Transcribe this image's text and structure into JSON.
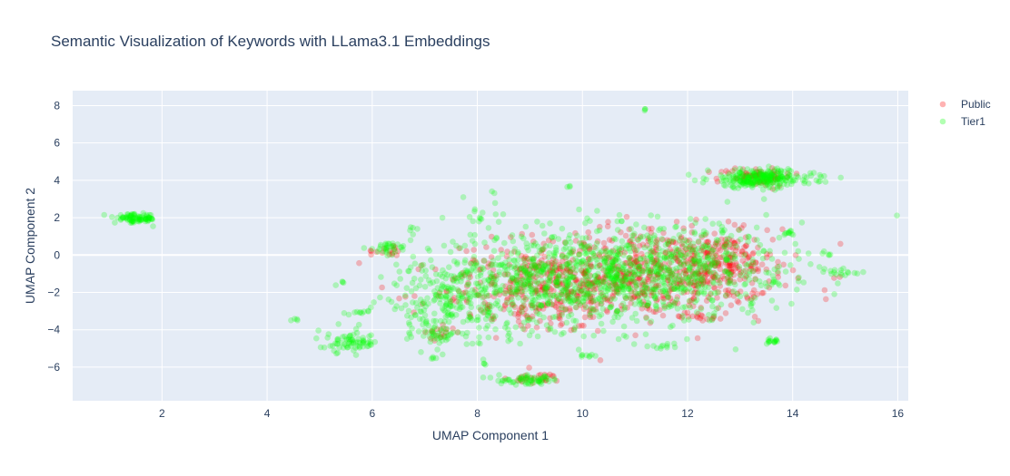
{
  "chart_data": {
    "type": "scatter",
    "title": "Semantic Visualization of Keywords with LLama3.1 Embeddings",
    "xlabel": "UMAP Component 1",
    "ylabel": "UMAP Component 2",
    "xlim": [
      0.3,
      16.2
    ],
    "ylim": [
      -7.8,
      8.8
    ],
    "xticks": [
      2,
      4,
      6,
      8,
      10,
      12,
      14,
      16
    ],
    "yticks": [
      -6,
      -4,
      -2,
      0,
      2,
      4,
      6,
      8
    ],
    "grid": true,
    "plot_background": "#e5ecf6",
    "legend_position": "top-right",
    "series": [
      {
        "name": "Public",
        "color": "#ff0000",
        "opacity": 0.25,
        "clusters": [
          {
            "cx": 11.0,
            "cy": -1.0,
            "sx": 1.3,
            "sy": 1.2,
            "n": 650
          },
          {
            "cx": 12.6,
            "cy": -0.6,
            "sx": 0.5,
            "sy": 0.9,
            "n": 160
          },
          {
            "cx": 13.3,
            "cy": 4.2,
            "sx": 0.35,
            "sy": 0.25,
            "n": 70
          },
          {
            "cx": 9.0,
            "cy": -2.0,
            "sx": 0.9,
            "sy": 1.1,
            "n": 220
          },
          {
            "cx": 9.2,
            "cy": -6.6,
            "sx": 0.25,
            "sy": 0.12,
            "n": 25
          },
          {
            "cx": 7.3,
            "cy": -4.2,
            "sx": 0.2,
            "sy": 0.2,
            "n": 15
          },
          {
            "cx": 6.3,
            "cy": 0.3,
            "sx": 0.2,
            "sy": 0.2,
            "n": 15
          },
          {
            "cx": 12.3,
            "cy": -3.3,
            "sx": 0.2,
            "sy": 0.1,
            "n": 15
          }
        ]
      },
      {
        "name": "Tier1",
        "color": "#00ff00",
        "opacity": 0.25,
        "clusters": [
          {
            "cx": 9.8,
            "cy": -1.3,
            "sx": 1.5,
            "sy": 1.3,
            "n": 950
          },
          {
            "cx": 12.0,
            "cy": -0.5,
            "sx": 1.1,
            "sy": 1.2,
            "n": 350
          },
          {
            "cx": 13.4,
            "cy": 4.1,
            "sx": 0.5,
            "sy": 0.25,
            "n": 260
          },
          {
            "cx": 7.5,
            "cy": -2.8,
            "sx": 0.7,
            "sy": 0.9,
            "n": 160
          },
          {
            "cx": 1.5,
            "cy": 1.95,
            "sx": 0.2,
            "sy": 0.12,
            "n": 90
          },
          {
            "cx": 5.6,
            "cy": -4.7,
            "sx": 0.25,
            "sy": 0.25,
            "n": 70
          },
          {
            "cx": 9.0,
            "cy": -6.7,
            "sx": 0.3,
            "sy": 0.12,
            "n": 60
          },
          {
            "cx": 7.2,
            "cy": -4.2,
            "sx": 0.2,
            "sy": 0.25,
            "n": 30
          },
          {
            "cx": 6.3,
            "cy": 0.4,
            "sx": 0.2,
            "sy": 0.15,
            "n": 30
          },
          {
            "cx": 13.6,
            "cy": -4.6,
            "sx": 0.1,
            "sy": 0.08,
            "n": 15
          },
          {
            "cx": 13.9,
            "cy": 1.2,
            "sx": 0.08,
            "sy": 0.08,
            "n": 10
          },
          {
            "cx": 15.0,
            "cy": -1.0,
            "sx": 0.15,
            "sy": 0.1,
            "n": 15
          },
          {
            "cx": 11.5,
            "cy": -4.9,
            "sx": 0.1,
            "sy": 0.06,
            "n": 10
          },
          {
            "cx": 5.8,
            "cy": -3.05,
            "sx": 0.1,
            "sy": 0.06,
            "n": 10
          },
          {
            "cx": 8.0,
            "cy": 2.2,
            "sx": 0.3,
            "sy": 0.3,
            "n": 12
          },
          {
            "cx": 4.5,
            "cy": -3.45,
            "sx": 0.04,
            "sy": 0.04,
            "n": 4
          },
          {
            "cx": 11.2,
            "cy": 7.8,
            "sx": 0.03,
            "sy": 0.03,
            "n": 3
          },
          {
            "cx": 8.3,
            "cy": 3.4,
            "sx": 0.03,
            "sy": 0.03,
            "n": 2
          },
          {
            "cx": 9.75,
            "cy": 3.65,
            "sx": 0.03,
            "sy": 0.03,
            "n": 3
          },
          {
            "cx": 8.15,
            "cy": -5.85,
            "sx": 0.03,
            "sy": 0.03,
            "n": 3
          },
          {
            "cx": 5.45,
            "cy": -1.45,
            "sx": 0.03,
            "sy": 0.03,
            "n": 3
          },
          {
            "cx": 14.6,
            "cy": 0.05,
            "sx": 0.05,
            "sy": 0.05,
            "n": 4
          },
          {
            "cx": 7.2,
            "cy": -5.55,
            "sx": 0.04,
            "sy": 0.05,
            "n": 4
          },
          {
            "cx": 10.1,
            "cy": -5.4,
            "sx": 0.08,
            "sy": 0.05,
            "n": 8
          },
          {
            "cx": 6.8,
            "cy": 1.4,
            "sx": 0.05,
            "sy": 0.05,
            "n": 4
          },
          {
            "cx": 13.6,
            "cy": -1.5,
            "sx": 0.1,
            "sy": 0.08,
            "n": 8
          }
        ]
      }
    ]
  }
}
